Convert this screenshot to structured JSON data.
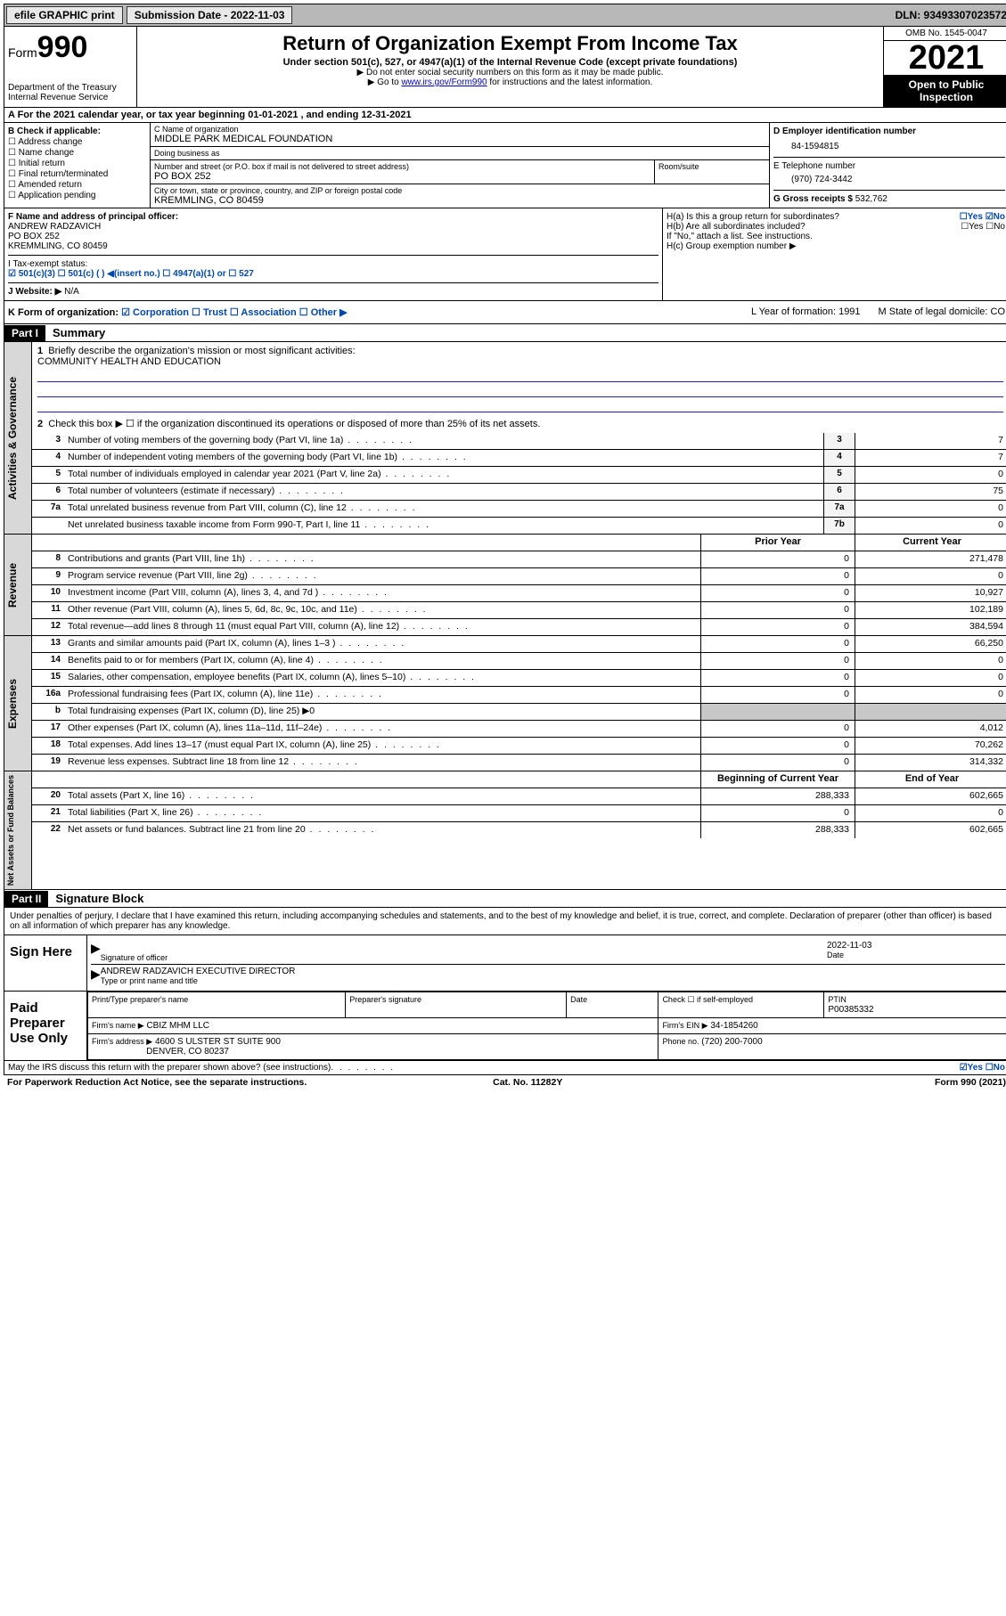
{
  "topbar": {
    "efile": "efile GRAPHIC print",
    "submission": "Submission Date - 2022-11-03",
    "dln": "DLN: 93493307023572"
  },
  "header": {
    "form_label": "Form",
    "form_number": "990",
    "dept": "Department of the Treasury",
    "irs": "Internal Revenue Service",
    "title": "Return of Organization Exempt From Income Tax",
    "subtitle": "Under section 501(c), 527, or 4947(a)(1) of the Internal Revenue Code (except private foundations)",
    "note1": "▶ Do not enter social security numbers on this form as it may be made public.",
    "note2_pre": "▶ Go to ",
    "note2_link": "www.irs.gov/Form990",
    "note2_post": " for instructions and the latest information.",
    "omb": "OMB No. 1545-0047",
    "year": "2021",
    "inspect": "Open to Public Inspection"
  },
  "rowA": "A For the 2021 calendar year, or tax year beginning 01-01-2021   , and ending 12-31-2021",
  "B": {
    "title": "B Check if applicable:",
    "opts": [
      "Address change",
      "Name change",
      "Initial return",
      "Final return/terminated",
      "Amended return",
      "Application pending"
    ]
  },
  "C": {
    "name_lbl": "C Name of organization",
    "name": "MIDDLE PARK MEDICAL FOUNDATION",
    "dba_lbl": "Doing business as",
    "dba": "",
    "addr_lbl": "Number and street (or P.O. box if mail is not delivered to street address)",
    "room_lbl": "Room/suite",
    "addr": "PO BOX 252",
    "city_lbl": "City or town, state or province, country, and ZIP or foreign postal code",
    "city": "KREMMLING, CO  80459"
  },
  "D": {
    "ein_lbl": "D Employer identification number",
    "ein": "84-1594815",
    "tel_lbl": "E Telephone number",
    "tel": "(970) 724-3442",
    "gross_lbl": "G Gross receipts $",
    "gross": "532,762"
  },
  "F": {
    "lbl": "F Name and address of principal officer:",
    "name": "ANDREW RADZAVICH",
    "addr1": "PO BOX 252",
    "addr2": "KREMMLING, CO  80459"
  },
  "H": {
    "a": "H(a)  Is this a group return for subordinates?",
    "a_ans": "☐Yes ☑No",
    "b": "H(b)  Are all subordinates included?",
    "b_ans": "☐Yes ☐No",
    "b_note": "If \"No,\" attach a list. See instructions.",
    "c": "H(c)  Group exemption number ▶"
  },
  "I": {
    "lbl": "I    Tax-exempt status:",
    "opts": "☑ 501(c)(3)   ☐  501(c) (  ) ◀(insert no.)    ☐ 4947(a)(1) or  ☐ 527"
  },
  "J": {
    "lbl": "J   Website: ▶",
    "val": "N/A"
  },
  "K": {
    "lbl": "K Form of organization:",
    "opts": "☑ Corporation ☐ Trust ☐ Association ☐ Other ▶",
    "L": "L Year of formation: 1991",
    "M": "M State of legal domicile: CO"
  },
  "part1": {
    "hdr": "Part I",
    "title": "Summary",
    "l1": "Briefly describe the organization's mission or most significant activities:",
    "mission": "COMMUNITY HEALTH AND EDUCATION",
    "l2": "Check this box ▶ ☐  if the organization discontinued its operations or disposed of more than 25% of its net assets.",
    "lines_gov": [
      {
        "n": "3",
        "t": "Number of voting members of the governing body (Part VI, line 1a)",
        "box": "3",
        "v": "7"
      },
      {
        "n": "4",
        "t": "Number of independent voting members of the governing body (Part VI, line 1b)",
        "box": "4",
        "v": "7"
      },
      {
        "n": "5",
        "t": "Total number of individuals employed in calendar year 2021 (Part V, line 2a)",
        "box": "5",
        "v": "0"
      },
      {
        "n": "6",
        "t": "Total number of volunteers (estimate if necessary)",
        "box": "6",
        "v": "75"
      },
      {
        "n": "7a",
        "t": "Total unrelated business revenue from Part VIII, column (C), line 12",
        "box": "7a",
        "v": "0"
      },
      {
        "n": "",
        "t": "Net unrelated business taxable income from Form 990-T, Part I, line 11",
        "box": "7b",
        "v": "0"
      }
    ],
    "hdr_prior": "Prior Year",
    "hdr_curr": "Current Year",
    "lines_rev": [
      {
        "n": "8",
        "t": "Contributions and grants (Part VIII, line 1h)",
        "p": "0",
        "c": "271,478"
      },
      {
        "n": "9",
        "t": "Program service revenue (Part VIII, line 2g)",
        "p": "0",
        "c": "0"
      },
      {
        "n": "10",
        "t": "Investment income (Part VIII, column (A), lines 3, 4, and 7d )",
        "p": "0",
        "c": "10,927"
      },
      {
        "n": "11",
        "t": "Other revenue (Part VIII, column (A), lines 5, 6d, 8c, 9c, 10c, and 11e)",
        "p": "0",
        "c": "102,189"
      },
      {
        "n": "12",
        "t": "Total revenue—add lines 8 through 11 (must equal Part VIII, column (A), line 12)",
        "p": "0",
        "c": "384,594"
      }
    ],
    "lines_exp": [
      {
        "n": "13",
        "t": "Grants and similar amounts paid (Part IX, column (A), lines 1–3 )",
        "p": "0",
        "c": "66,250"
      },
      {
        "n": "14",
        "t": "Benefits paid to or for members (Part IX, column (A), line 4)",
        "p": "0",
        "c": "0"
      },
      {
        "n": "15",
        "t": "Salaries, other compensation, employee benefits (Part IX, column (A), lines 5–10)",
        "p": "0",
        "c": "0"
      },
      {
        "n": "16a",
        "t": "Professional fundraising fees (Part IX, column (A), line 11e)",
        "p": "0",
        "c": "0"
      },
      {
        "n": "b",
        "t": "Total fundraising expenses (Part IX, column (D), line 25) ▶0",
        "p": "",
        "c": "",
        "shade": true
      },
      {
        "n": "17",
        "t": "Other expenses (Part IX, column (A), lines 11a–11d, 11f–24e)",
        "p": "0",
        "c": "4,012"
      },
      {
        "n": "18",
        "t": "Total expenses. Add lines 13–17 (must equal Part IX, column (A), line 25)",
        "p": "0",
        "c": "70,262"
      },
      {
        "n": "19",
        "t": "Revenue less expenses. Subtract line 18 from line 12",
        "p": "0",
        "c": "314,332"
      }
    ],
    "hdr_begin": "Beginning of Current Year",
    "hdr_end": "End of Year",
    "lines_net": [
      {
        "n": "20",
        "t": "Total assets (Part X, line 16)",
        "p": "288,333",
        "c": "602,665"
      },
      {
        "n": "21",
        "t": "Total liabilities (Part X, line 26)",
        "p": "0",
        "c": "0"
      },
      {
        "n": "22",
        "t": "Net assets or fund balances. Subtract line 21 from line 20",
        "p": "288,333",
        "c": "602,665"
      }
    ]
  },
  "part2": {
    "hdr": "Part II",
    "title": "Signature Block",
    "decl": "Under penalties of perjury, I declare that I have examined this return, including accompanying schedules and statements, and to the best of my knowledge and belief, it is true, correct, and complete. Declaration of preparer (other than officer) is based on all information of which preparer has any knowledge.",
    "sign_here": "Sign Here",
    "sig_officer": "Signature of officer",
    "sig_date": "2022-11-03",
    "date_lbl": "Date",
    "officer_name": "ANDREW RADZAVICH  EXECUTIVE DIRECTOR",
    "type_name": "Type or print name and title",
    "paid": "Paid Preparer Use Only",
    "prep_name_lbl": "Print/Type preparer's name",
    "prep_sig_lbl": "Preparer's signature",
    "prep_date_lbl": "Date",
    "check_self": "Check ☐ if self-employed",
    "ptin_lbl": "PTIN",
    "ptin": "P00385332",
    "firm_name_lbl": "Firm's name    ▶",
    "firm_name": "CBIZ MHM LLC",
    "firm_ein_lbl": "Firm's EIN ▶",
    "firm_ein": "34-1854260",
    "firm_addr_lbl": "Firm's address ▶",
    "firm_addr": "4600 S ULSTER ST SUITE 900",
    "firm_city": "DENVER, CO  80237",
    "phone_lbl": "Phone no.",
    "phone": "(720) 200-7000",
    "discuss": "May the IRS discuss this return with the preparer shown above? (see instructions)",
    "discuss_ans": "☑Yes  ☐No"
  },
  "footer": {
    "pra": "For Paperwork Reduction Act Notice, see the separate instructions.",
    "cat": "Cat. No. 11282Y",
    "form": "Form 990 (2021)"
  }
}
